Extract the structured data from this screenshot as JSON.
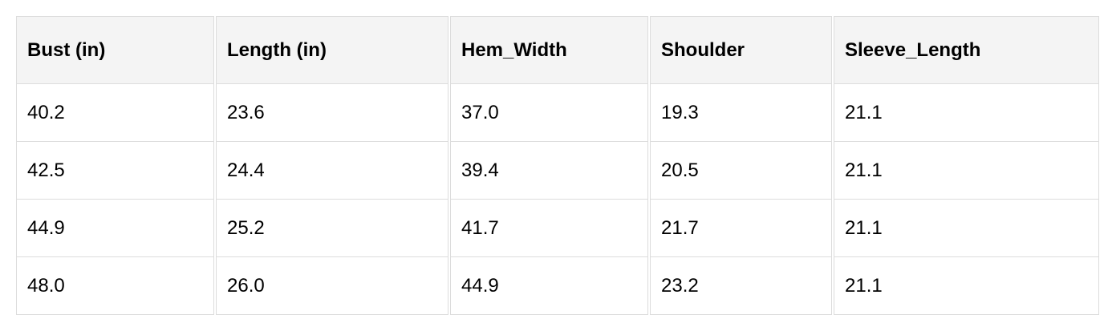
{
  "table": {
    "headers": [
      "Bust (in)",
      "Length (in)",
      "Hem_Width",
      "Shoulder",
      "Sleeve_Length"
    ],
    "rows": [
      [
        "40.2",
        "23.6",
        "37.0",
        "19.3",
        "21.1"
      ],
      [
        "42.5",
        "24.4",
        "39.4",
        "20.5",
        "21.1"
      ],
      [
        "44.9",
        "25.2",
        "41.7",
        "21.7",
        "21.1"
      ],
      [
        "48.0",
        "26.0",
        "44.9",
        "23.2",
        "21.1"
      ]
    ]
  }
}
